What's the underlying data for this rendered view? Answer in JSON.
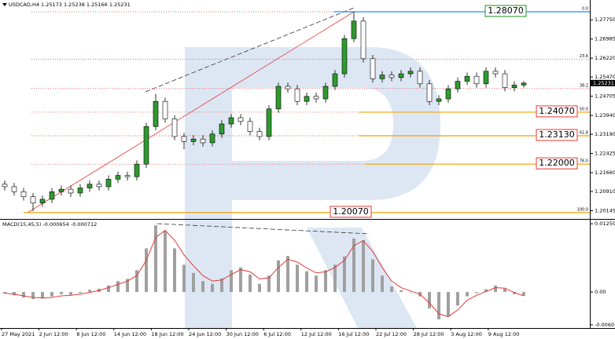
{
  "chart_data": [
    {
      "type": "candlestick",
      "title": "USDCAD,H4  1.25173 1.25238 1.25166 1.25231",
      "up_color": "#2e9b2e",
      "down_color": "#ffffff",
      "open": [
        1.212,
        1.211,
        1.209,
        1.207,
        1.2045,
        1.206,
        1.209,
        1.21,
        1.2085,
        1.2105,
        1.212,
        1.211,
        1.214,
        1.2155,
        1.215,
        1.22,
        1.235,
        1.245,
        1.238,
        1.231,
        1.229,
        1.23,
        1.2285,
        1.232,
        1.236,
        1.2385,
        1.237,
        1.233,
        1.231,
        1.242,
        1.251,
        1.25,
        1.245,
        1.247,
        1.246,
        1.251,
        1.256,
        1.27,
        1.277,
        1.262,
        1.254,
        1.2555,
        1.2545,
        1.256,
        1.257,
        1.252,
        1.245,
        1.246,
        1.25,
        1.253,
        1.255,
        1.252,
        1.257,
        1.256,
        1.2505,
        1.2515
      ],
      "high": [
        1.2135,
        1.2125,
        1.2105,
        1.2085,
        1.2075,
        1.2105,
        1.2115,
        1.2115,
        1.212,
        1.2135,
        1.2135,
        1.2155,
        1.217,
        1.217,
        1.2215,
        1.2365,
        1.248,
        1.2465,
        1.2395,
        1.2325,
        1.2315,
        1.2315,
        1.2335,
        1.2375,
        1.24,
        1.24,
        1.2385,
        1.2345,
        1.2435,
        1.2525,
        1.2525,
        1.2515,
        1.2485,
        1.2485,
        1.2525,
        1.2575,
        1.2715,
        1.2807,
        1.2785,
        1.2635,
        1.257,
        1.257,
        1.2575,
        1.2585,
        1.2585,
        1.2535,
        1.2475,
        1.2515,
        1.2545,
        1.2565,
        1.2565,
        1.2585,
        1.2585,
        1.2575,
        1.253,
        1.253
      ],
      "low": [
        1.2095,
        1.2075,
        1.2055,
        1.2013,
        1.203,
        1.2045,
        1.2075,
        1.207,
        1.207,
        1.209,
        1.2095,
        1.2095,
        1.2125,
        1.2135,
        1.2135,
        1.2185,
        1.2335,
        1.2365,
        1.2295,
        1.226,
        1.2275,
        1.227,
        1.227,
        1.2305,
        1.2345,
        1.2355,
        1.2315,
        1.2295,
        1.2295,
        1.2405,
        1.2485,
        1.2435,
        1.2435,
        1.2445,
        1.2445,
        1.2495,
        1.2545,
        1.2685,
        1.2605,
        1.2525,
        1.2525,
        1.253,
        1.253,
        1.2545,
        1.2505,
        1.2435,
        1.2435,
        1.2445,
        1.2485,
        1.2515,
        1.2505,
        1.2505,
        1.2545,
        1.249,
        1.249,
        1.2505
      ],
      "close": [
        1.211,
        1.209,
        1.207,
        1.2045,
        1.206,
        1.209,
        1.21,
        1.2085,
        1.2105,
        1.212,
        1.211,
        1.214,
        1.2155,
        1.215,
        1.22,
        1.235,
        1.245,
        1.238,
        1.231,
        1.229,
        1.23,
        1.2285,
        1.232,
        1.236,
        1.2385,
        1.237,
        1.233,
        1.231,
        1.242,
        1.251,
        1.25,
        1.245,
        1.247,
        1.246,
        1.251,
        1.256,
        1.27,
        1.277,
        1.262,
        1.254,
        1.2555,
        1.2545,
        1.256,
        1.257,
        1.252,
        1.245,
        1.246,
        1.25,
        1.253,
        1.255,
        1.252,
        1.257,
        1.256,
        1.2505,
        1.2515,
        1.2523
      ],
      "ylim": [
        1.19848,
        1.28539
      ],
      "yticks": [
        {
          "value": 1.2775,
          "label": "1.27750"
        },
        {
          "value": 1.26985,
          "label": "1.26985"
        },
        {
          "value": 1.2622,
          "label": "1.26220"
        },
        {
          "value": 1.2547,
          "label": "1.25470"
        },
        {
          "value": 1.24705,
          "label": "1.24705"
        },
        {
          "value": 1.2394,
          "label": "1.23940"
        },
        {
          "value": 1.2319,
          "label": "1.23190"
        },
        {
          "value": 1.22425,
          "label": "1.22425"
        },
        {
          "value": 1.2166,
          "label": "1.21660"
        },
        {
          "value": 1.2091,
          "label": "1.20910"
        },
        {
          "value": 1.20145,
          "label": "1.20145"
        }
      ],
      "last_price": {
        "value": 1.25231,
        "label": "1.25231"
      },
      "fib_levels": [
        {
          "ratio": "0.0",
          "price": 1.2807,
          "box_label": "1.28070",
          "color": "#1e90ff",
          "box_color": "#1f8f1f"
        },
        {
          "ratio": "23.6",
          "price": 1.26182,
          "color": "#e53935"
        },
        {
          "ratio": "38.2",
          "price": 1.25014,
          "color": "#e53935"
        },
        {
          "ratio": "50.0",
          "price": 1.2407,
          "box_label": "1.24070",
          "color": "#f0a000",
          "box_color": "#e53935"
        },
        {
          "ratio": "61.8",
          "price": 1.2313,
          "box_label": "1.23130",
          "color": "#f0a000",
          "box_color": "#e53935"
        },
        {
          "ratio": "76.0",
          "price": 1.22,
          "box_label": "1.22000",
          "color": "#f0a000",
          "box_color": "#e53935"
        },
        {
          "ratio": "100.0",
          "price": 1.2007,
          "box_label": "1.20070",
          "color": "#f0a000",
          "box_color": "#e53935"
        }
      ],
      "x_labels": [
        "27 May 2021",
        "2 Jun 12:00",
        "8 Jun 12:00",
        "14 Jun 12:00",
        "18 Jun 12:00",
        "24 Jun 12:00",
        "30 Jun 12:00",
        "6 Jul 12:00",
        "12 Jul 12:00",
        "16 Jul 12:00",
        "22 Jul 12:00",
        "28 Jul 12:00",
        "3 Aug 12:00",
        "9 Aug 12:00"
      ]
    },
    {
      "type": "macd",
      "title": "MACD(15,45,5) -0.000654 -0.000712",
      "histogram": [
        -0.0003,
        -0.0006,
        -0.001,
        -0.0013,
        -0.0012,
        -0.0008,
        -0.0004,
        -0.0005,
        -0.0002,
        0.0004,
        0.0006,
        0.0012,
        0.002,
        0.0024,
        0.004,
        0.008,
        0.0122,
        0.0112,
        0.008,
        0.005,
        0.0035,
        0.002,
        0.0015,
        0.0025,
        0.004,
        0.0045,
        0.0032,
        0.0015,
        0.003,
        0.0058,
        0.0066,
        0.005,
        0.0038,
        0.003,
        0.004,
        0.005,
        0.0065,
        0.0098,
        0.0095,
        0.006,
        0.003,
        0.001,
        0.0003,
        0.0,
        -0.0008,
        -0.003,
        -0.005,
        -0.0045,
        -0.0025,
        -0.0008,
        -0.0002,
        0.0005,
        0.0012,
        0.0006,
        -0.0004,
        -0.0007
      ],
      "signal": [
        -0.0002,
        -0.0004,
        -0.0007,
        -0.001,
        -0.0011,
        -0.001,
        -0.0007,
        -0.0006,
        -0.0004,
        -0.0001,
        0.0003,
        0.0008,
        0.0014,
        0.002,
        0.003,
        0.0058,
        0.01,
        0.0113,
        0.0095,
        0.0068,
        0.0048,
        0.003,
        0.002,
        0.0022,
        0.0032,
        0.0041,
        0.0037,
        0.0024,
        0.0026,
        0.0045,
        0.006,
        0.0055,
        0.0044,
        0.0035,
        0.0037,
        0.0045,
        0.0058,
        0.0085,
        0.0094,
        0.0074,
        0.0045,
        0.002,
        0.0008,
        0.0002,
        -0.0004,
        -0.002,
        -0.004,
        -0.0045,
        -0.0033,
        -0.0015,
        -0.0006,
        0.0001,
        0.0008,
        0.0007,
        -0.0001,
        -0.0007
      ],
      "histogram_color": "#a0a0a0",
      "signal_color": "#e53935",
      "ylim": [
        -0.0066,
        0.0131
      ],
      "yticks": [
        0.012502,
        {
          "value": 0,
          "label": "0.00"
        },
        -0.00601
      ]
    }
  ]
}
